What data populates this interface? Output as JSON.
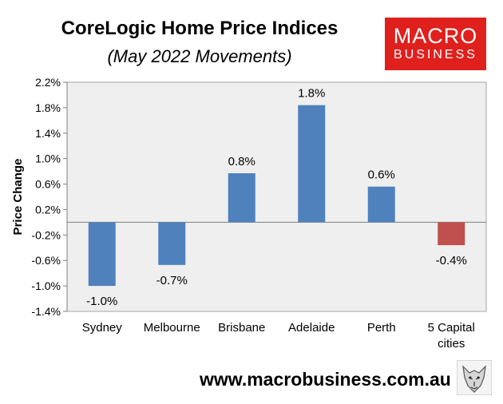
{
  "header": {
    "title": "CoreLogic Home Price Indices",
    "subtitle": "(May 2022 Movements)"
  },
  "logo": {
    "line1": "MACRO",
    "line2": "BUSINESS",
    "color": "#e0201d"
  },
  "footer": {
    "url": "www.macrobusiness.com.au",
    "wolf_icon": "wolf-head-icon"
  },
  "colors": {
    "positive": "#4f81bd",
    "negative": "#c0504d",
    "plot_bg": "#efefef"
  },
  "chart_data": {
    "type": "bar",
    "ylabel": "Price Change",
    "ylim": [
      -1.4,
      2.2
    ],
    "yticks": [
      2.2,
      1.8,
      1.4,
      1.0,
      0.6,
      0.2,
      -0.2,
      -0.6,
      -1.0,
      -1.4
    ],
    "ytick_labels": [
      "2.2%",
      "1.8%",
      "1.4%",
      "1.0%",
      "0.6%",
      "0.2%",
      "-0.2%",
      "-0.6%",
      "-1.0%",
      "-1.4%"
    ],
    "categories": [
      [
        "Sydney"
      ],
      [
        "Melbourne"
      ],
      [
        "Brisbane"
      ],
      [
        "Adelaide"
      ],
      [
        "Perth"
      ],
      [
        "5 Capital",
        "cities"
      ]
    ],
    "values": [
      -1.0,
      -0.67,
      0.77,
      1.84,
      0.56,
      -0.36
    ],
    "value_labels": [
      "-1.0%",
      "-0.7%",
      "0.8%",
      "1.8%",
      "0.6%",
      "-0.4%"
    ],
    "bar_colors": [
      "#4f81bd",
      "#4f81bd",
      "#4f81bd",
      "#4f81bd",
      "#4f81bd",
      "#c0504d"
    ],
    "grid": false
  }
}
